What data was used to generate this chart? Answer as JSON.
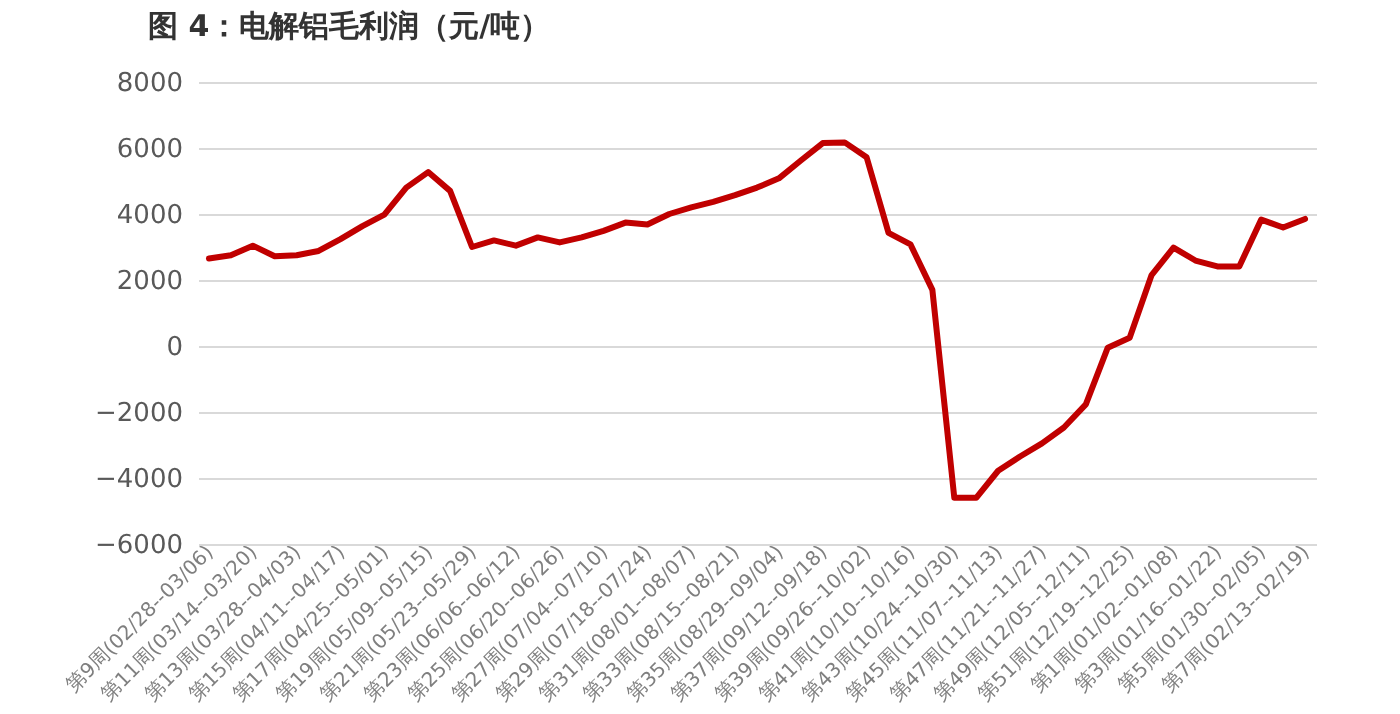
{
  "chart_data": {
    "type": "line",
    "title": "图 4：电解铝毛利润（元/吨）",
    "categories": [
      "第9周(02/28--03/06)",
      null,
      "第11周(03/14--03/20)",
      null,
      "第13周(03/28--04/03)",
      null,
      "第15周(04/11--04/17)",
      null,
      "第17周(04/25--05/01)",
      null,
      "第19周(05/09--05/15)",
      null,
      "第21周(05/23--05/29)",
      null,
      "第23周(06/06--06/12)",
      null,
      "第25周(06/20--06/26)",
      null,
      "第27周(07/04--07/10)",
      null,
      "第29周(07/18--07/24)",
      null,
      "第31周(08/01--08/07)",
      null,
      "第33周(08/15--08/21)",
      null,
      "第35周(08/29--09/04)",
      null,
      "第37周(09/12--09/18)",
      null,
      "第39周(09/26--10/02)",
      null,
      "第41周(10/10--10/16)",
      null,
      "第43周(10/24--10/30)",
      null,
      "第45周(11/07--11/13)",
      null,
      "第47周(11/21--11/27)",
      null,
      "第49周(12/05--12/11)",
      null,
      "第51周(12/19--12/25)",
      null,
      "第1周(01/02--01/08)",
      null,
      "第3周(01/16--01/22)",
      null,
      "第5周(01/30--02/05)",
      null,
      "第7周(02/13--02/19)"
    ],
    "series": [
      {
        "color": "#c00000",
        "values": [
          2650,
          2750,
          3040,
          2720,
          2750,
          2880,
          3240,
          3630,
          3980,
          4800,
          5270,
          4700,
          3000,
          3200,
          3040,
          3290,
          3140,
          3290,
          3490,
          3740,
          3680,
          4000,
          4200,
          4370,
          4570,
          4800,
          5080,
          5620,
          6150,
          6170,
          5720,
          3430,
          3080,
          1700,
          -4600,
          -4600,
          -3780,
          -3350,
          -2950,
          -2470,
          -1770,
          -50,
          250,
          2150,
          2980,
          2590,
          2410,
          2410,
          3830,
          3590,
          3850
        ]
      }
    ],
    "ylim": [
      -6000,
      8000
    ],
    "yticks": [
      -6000,
      -4000,
      -2000,
      0,
      2000,
      4000,
      6000,
      8000
    ],
    "grid": "y",
    "line_style": "solid"
  }
}
